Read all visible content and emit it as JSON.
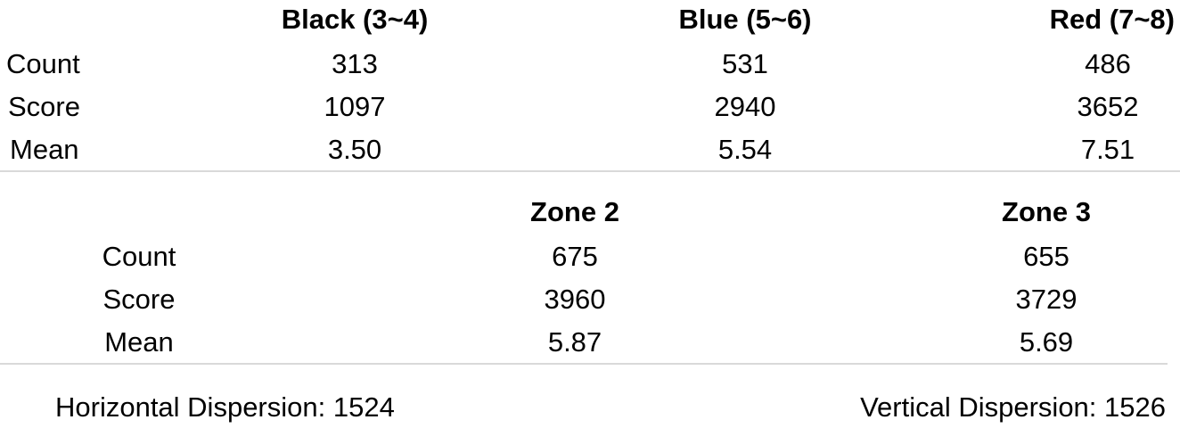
{
  "table_colors": {
    "headers": [
      "Black (3~4)",
      "Blue (5~6)",
      "Red (7~8)"
    ],
    "rows": [
      {
        "label": "Count",
        "values": [
          "313",
          "531",
          "486"
        ]
      },
      {
        "label": "Score",
        "values": [
          "1097",
          "2940",
          "3652"
        ]
      },
      {
        "label": "Mean",
        "values": [
          "3.50",
          "5.54",
          "7.51"
        ]
      }
    ]
  },
  "table_zones": {
    "headers": [
      "Zone 2",
      "Zone 3"
    ],
    "rows": [
      {
        "label": "Count",
        "values": [
          "675",
          "655"
        ]
      },
      {
        "label": "Score",
        "values": [
          "3960",
          "3729"
        ]
      },
      {
        "label": "Mean",
        "values": [
          "5.87",
          "5.69"
        ]
      }
    ]
  },
  "footer": {
    "horizontal": "Horizontal Dispersion: 1524",
    "vertical": "Vertical Dispersion: 1526"
  },
  "colors": {
    "divider": "#d9d9d9",
    "text": "#000000"
  }
}
